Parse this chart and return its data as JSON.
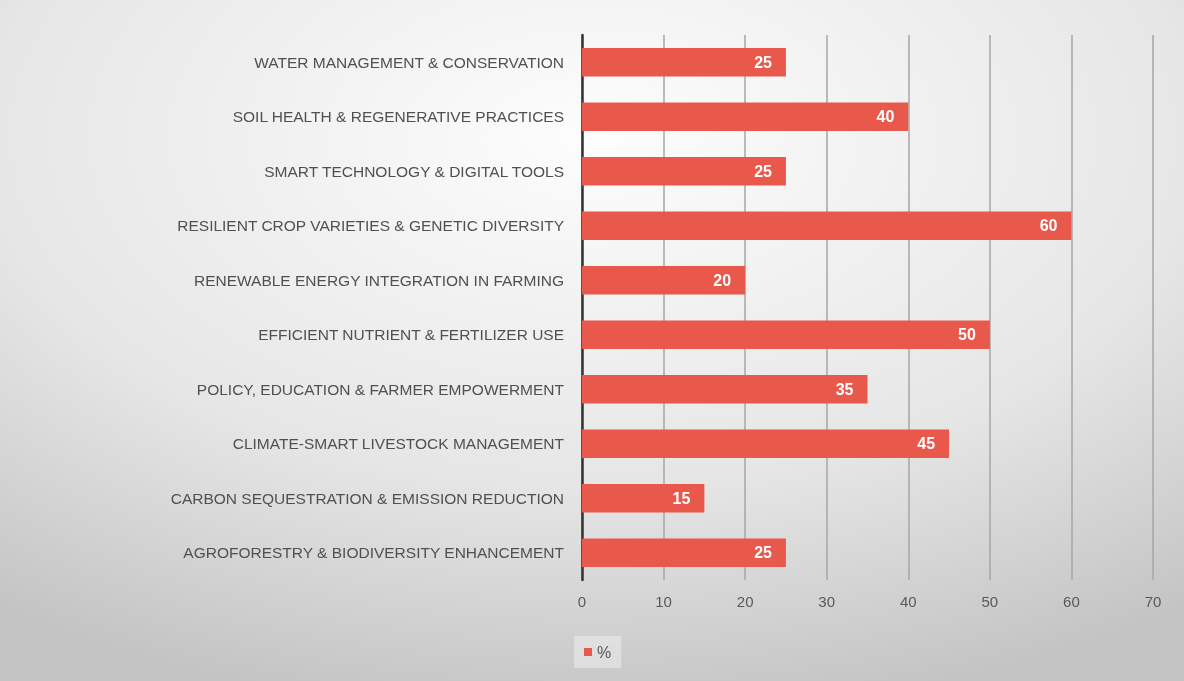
{
  "chart_data": {
    "type": "bar",
    "orientation": "horizontal",
    "categories": [
      "WATER MANAGEMENT & CONSERVATION",
      "SOIL HEALTH & REGENERATIVE PRACTICES",
      "SMART TECHNOLOGY & DIGITAL TOOLS",
      "RESILIENT CROP VARIETIES & GENETIC DIVERSITY",
      "RENEWABLE ENERGY INTEGRATION IN FARMING",
      "EFFICIENT NUTRIENT & FERTILIZER USE",
      "POLICY, EDUCATION & FARMER EMPOWERMENT",
      "CLIMATE-SMART LIVESTOCK MANAGEMENT",
      "CARBON SEQUESTRATION & EMISSION REDUCTION",
      "AGROFORESTRY & BIODIVERSITY ENHANCEMENT"
    ],
    "series": [
      {
        "name": "%",
        "color": "#e8594c",
        "values": [
          25,
          40,
          25,
          60,
          20,
          50,
          35,
          45,
          15,
          25
        ]
      }
    ],
    "xlim": [
      0,
      70
    ],
    "xticks": [
      0,
      10,
      20,
      30,
      40,
      50,
      60,
      70
    ],
    "grid": "x",
    "legend": "bottom left",
    "data_labels": true
  }
}
